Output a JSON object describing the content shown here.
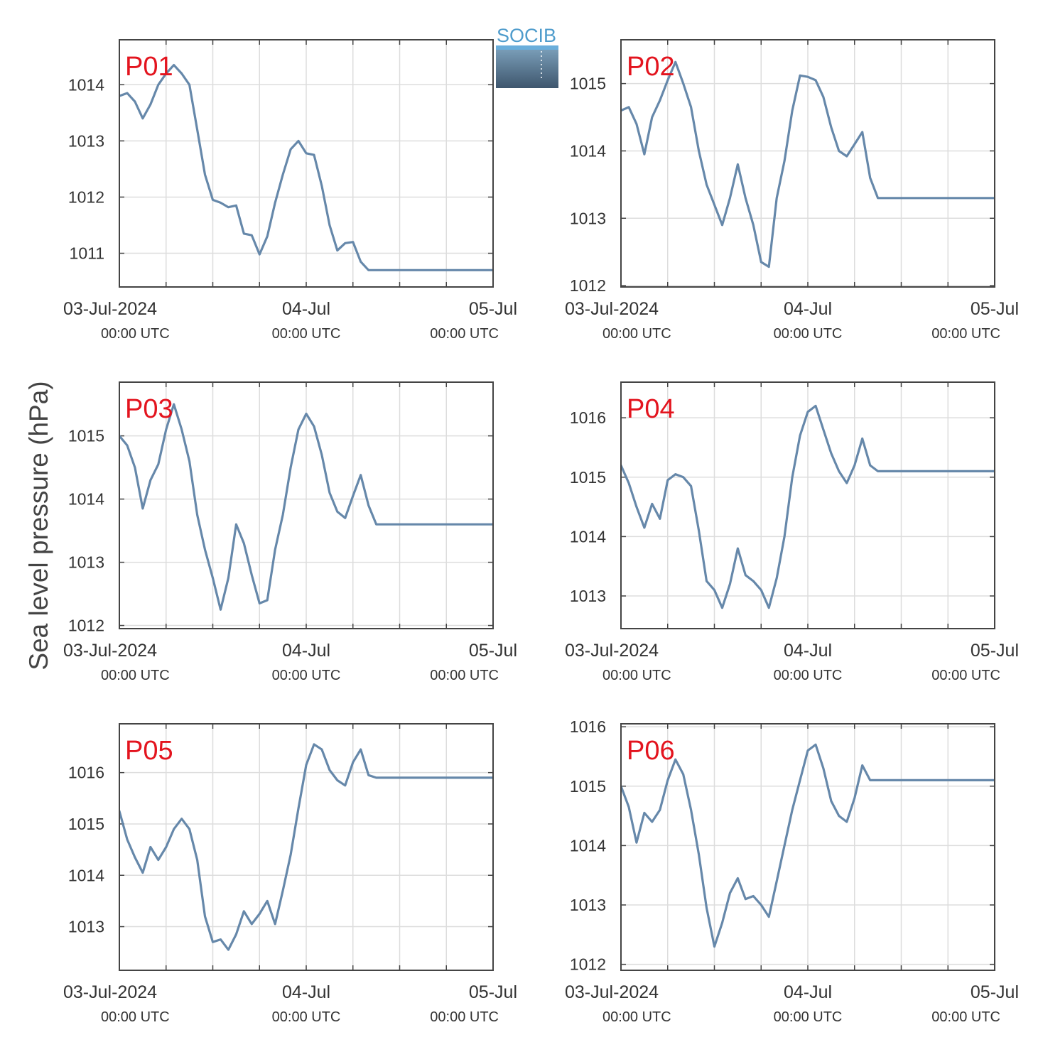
{
  "figure": {
    "ylabel": "Sea level pressure (hPa)",
    "logo_text": "SOCIB",
    "line_color": "#6688aa",
    "station_color": "#e3141e",
    "grid_color": "#dddddd"
  },
  "chart_data": [
    {
      "type": "line",
      "station": "P01",
      "ylim": [
        1010.4,
        1014.8
      ],
      "yticks": [
        1011,
        1012,
        1013,
        1014
      ],
      "xlim": [
        0,
        48
      ],
      "xticks": [
        0,
        6,
        12,
        18,
        24,
        30,
        36,
        42,
        48
      ],
      "xtick_labels": [
        {
          "x": 0,
          "date": "03-Jul-2024",
          "time": "00:00 UTC"
        },
        {
          "x": 24,
          "date": "04-Jul",
          "time": "00:00 UTC"
        },
        {
          "x": 48,
          "date": "05-Jul",
          "time": "00:00 UTC"
        }
      ],
      "x": [
        0,
        1,
        2,
        3,
        4,
        5,
        6,
        7,
        8,
        9,
        10,
        11,
        12,
        13,
        14,
        15,
        16,
        17,
        18,
        19,
        20,
        21,
        22,
        23,
        24,
        25,
        26,
        27,
        28,
        29,
        30,
        31,
        32,
        33,
        34,
        35,
        36,
        37,
        38,
        39,
        40,
        41,
        42,
        43,
        44,
        45,
        46,
        47,
        48
      ],
      "values": [
        1013.8,
        1013.85,
        1013.7,
        1013.4,
        1013.65,
        1014.0,
        1014.2,
        1014.35,
        1014.2,
        1014.0,
        1013.2,
        1012.4,
        1011.95,
        1011.9,
        1011.82,
        1011.85,
        1011.35,
        1011.32,
        1010.98,
        1011.3,
        1011.9,
        1012.4,
        1012.85,
        1013.0,
        1012.78,
        1012.75,
        1012.2,
        1011.5,
        1011.05,
        1011.18,
        1011.2,
        1010.85,
        1010.7,
        1010.7,
        1010.7,
        1010.7,
        1010.7,
        1010.7,
        1010.7,
        1010.7,
        1010.7,
        1010.7,
        1010.7,
        1010.7,
        1010.7,
        1010.7,
        1010.7,
        1010.7,
        1010.7
      ]
    },
    {
      "type": "line",
      "station": "P02",
      "ylim": [
        1011.98,
        1015.65
      ],
      "yticks": [
        1012,
        1013,
        1014,
        1015
      ],
      "xlim": [
        0,
        48
      ],
      "xticks": [
        0,
        6,
        12,
        18,
        24,
        30,
        36,
        42,
        48
      ],
      "xtick_labels": [
        {
          "x": 0,
          "date": "03-Jul-2024",
          "time": "00:00 UTC"
        },
        {
          "x": 24,
          "date": "04-Jul",
          "time": "00:00 UTC"
        },
        {
          "x": 48,
          "date": "05-Jul",
          "time": "00:00 UTC"
        }
      ],
      "x": [
        0,
        1,
        2,
        3,
        4,
        5,
        6,
        7,
        8,
        9,
        10,
        11,
        12,
        13,
        14,
        15,
        16,
        17,
        18,
        19,
        20,
        21,
        22,
        23,
        24,
        25,
        26,
        27,
        28,
        29,
        30,
        31,
        32,
        33,
        34,
        35,
        36,
        37,
        38,
        39,
        40,
        41,
        42,
        43,
        44,
        45,
        46,
        47,
        48
      ],
      "values": [
        1014.6,
        1014.65,
        1014.4,
        1013.95,
        1014.5,
        1014.75,
        1015.05,
        1015.32,
        1015.0,
        1014.65,
        1014.0,
        1013.5,
        1013.2,
        1012.9,
        1013.3,
        1013.8,
        1013.3,
        1012.9,
        1012.35,
        1012.28,
        1013.3,
        1013.85,
        1014.6,
        1015.12,
        1015.1,
        1015.05,
        1014.8,
        1014.35,
        1014.0,
        1013.92,
        1014.1,
        1014.28,
        1013.6,
        1013.3,
        1013.3,
        1013.3,
        1013.3,
        1013.3,
        1013.3,
        1013.3,
        1013.3,
        1013.3,
        1013.3,
        1013.3,
        1013.3,
        1013.3,
        1013.3,
        1013.3,
        1013.3
      ]
    },
    {
      "type": "line",
      "station": "P03",
      "ylim": [
        1011.95,
        1015.85
      ],
      "yticks": [
        1012,
        1013,
        1014,
        1015
      ],
      "xlim": [
        0,
        48
      ],
      "xticks": [
        0,
        6,
        12,
        18,
        24,
        30,
        36,
        42,
        48
      ],
      "xtick_labels": [
        {
          "x": 0,
          "date": "03-Jul-2024",
          "time": "00:00 UTC"
        },
        {
          "x": 24,
          "date": "04-Jul",
          "time": "00:00 UTC"
        },
        {
          "x": 48,
          "date": "05-Jul",
          "time": "00:00 UTC"
        }
      ],
      "x": [
        0,
        1,
        2,
        3,
        4,
        5,
        6,
        7,
        8,
        9,
        10,
        11,
        12,
        13,
        14,
        15,
        16,
        17,
        18,
        19,
        20,
        21,
        22,
        23,
        24,
        25,
        26,
        27,
        28,
        29,
        30,
        31,
        32,
        33,
        34,
        35,
        36,
        37,
        38,
        39,
        40,
        41,
        42,
        43,
        44,
        45,
        46,
        47,
        48
      ],
      "values": [
        1015.0,
        1014.85,
        1014.5,
        1013.85,
        1014.3,
        1014.55,
        1015.1,
        1015.5,
        1015.1,
        1014.6,
        1013.75,
        1013.2,
        1012.75,
        1012.25,
        1012.75,
        1013.6,
        1013.3,
        1012.8,
        1012.35,
        1012.4,
        1013.2,
        1013.75,
        1014.5,
        1015.1,
        1015.35,
        1015.15,
        1014.7,
        1014.1,
        1013.8,
        1013.7,
        1014.05,
        1014.38,
        1013.9,
        1013.6,
        1013.6,
        1013.6,
        1013.6,
        1013.6,
        1013.6,
        1013.6,
        1013.6,
        1013.6,
        1013.6,
        1013.6,
        1013.6,
        1013.6,
        1013.6,
        1013.6,
        1013.6
      ]
    },
    {
      "type": "line",
      "station": "P04",
      "ylim": [
        1012.45,
        1016.6
      ],
      "yticks": [
        1013,
        1014,
        1015,
        1016
      ],
      "xlim": [
        0,
        48
      ],
      "xticks": [
        0,
        6,
        12,
        18,
        24,
        30,
        36,
        42,
        48
      ],
      "xtick_labels": [
        {
          "x": 0,
          "date": "03-Jul-2024",
          "time": "00:00 UTC"
        },
        {
          "x": 24,
          "date": "04-Jul",
          "time": "00:00 UTC"
        },
        {
          "x": 48,
          "date": "05-Jul",
          "time": "00:00 UTC"
        }
      ],
      "x": [
        0,
        1,
        2,
        3,
        4,
        5,
        6,
        7,
        8,
        9,
        10,
        11,
        12,
        13,
        14,
        15,
        16,
        17,
        18,
        19,
        20,
        21,
        22,
        23,
        24,
        25,
        26,
        27,
        28,
        29,
        30,
        31,
        32,
        33,
        34,
        35,
        36,
        37,
        38,
        39,
        40,
        41,
        42,
        43,
        44,
        45,
        46,
        47,
        48
      ],
      "values": [
        1015.2,
        1014.9,
        1014.5,
        1014.15,
        1014.55,
        1014.3,
        1014.95,
        1015.05,
        1015.0,
        1014.85,
        1014.1,
        1013.25,
        1013.1,
        1012.8,
        1013.2,
        1013.8,
        1013.35,
        1013.25,
        1013.1,
        1012.8,
        1013.3,
        1014.0,
        1015.0,
        1015.7,
        1016.1,
        1016.2,
        1015.8,
        1015.4,
        1015.1,
        1014.9,
        1015.2,
        1015.65,
        1015.2,
        1015.1,
        1015.1,
        1015.1,
        1015.1,
        1015.1,
        1015.1,
        1015.1,
        1015.1,
        1015.1,
        1015.1,
        1015.1,
        1015.1,
        1015.1,
        1015.1,
        1015.1,
        1015.1
      ]
    },
    {
      "type": "line",
      "station": "P05",
      "ylim": [
        1012.15,
        1016.95
      ],
      "yticks": [
        1013,
        1014,
        1015,
        1016
      ],
      "xlim": [
        0,
        48
      ],
      "xticks": [
        0,
        6,
        12,
        18,
        24,
        30,
        36,
        42,
        48
      ],
      "xtick_labels": [
        {
          "x": 0,
          "date": "03-Jul-2024",
          "time": "00:00 UTC"
        },
        {
          "x": 24,
          "date": "04-Jul",
          "time": "00:00 UTC"
        },
        {
          "x": 48,
          "date": "05-Jul",
          "time": "00:00 UTC"
        }
      ],
      "x": [
        0,
        1,
        2,
        3,
        4,
        5,
        6,
        7,
        8,
        9,
        10,
        11,
        12,
        13,
        14,
        15,
        16,
        17,
        18,
        19,
        20,
        21,
        22,
        23,
        24,
        25,
        26,
        27,
        28,
        29,
        30,
        31,
        32,
        33,
        34,
        35,
        36,
        37,
        38,
        39,
        40,
        41,
        42,
        43,
        44,
        45,
        46,
        47,
        48
      ],
      "values": [
        1015.25,
        1014.7,
        1014.35,
        1014.05,
        1014.55,
        1014.3,
        1014.55,
        1014.9,
        1015.1,
        1014.9,
        1014.3,
        1013.2,
        1012.7,
        1012.75,
        1012.55,
        1012.85,
        1013.3,
        1013.05,
        1013.25,
        1013.5,
        1013.05,
        1013.7,
        1014.4,
        1015.3,
        1016.15,
        1016.55,
        1016.45,
        1016.05,
        1015.85,
        1015.75,
        1016.2,
        1016.45,
        1015.95,
        1015.9,
        1015.9,
        1015.9,
        1015.9,
        1015.9,
        1015.9,
        1015.9,
        1015.9,
        1015.9,
        1015.9,
        1015.9,
        1015.9,
        1015.9,
        1015.9,
        1015.9,
        1015.9
      ]
    },
    {
      "type": "line",
      "station": "P06",
      "ylim": [
        1011.9,
        1016.05
      ],
      "yticks": [
        1012,
        1013,
        1014,
        1015,
        1016
      ],
      "xlim": [
        0,
        48
      ],
      "xticks": [
        0,
        6,
        12,
        18,
        24,
        30,
        36,
        42,
        48
      ],
      "xtick_labels": [
        {
          "x": 0,
          "date": "03-Jul-2024",
          "time": "00:00 UTC"
        },
        {
          "x": 24,
          "date": "04-Jul",
          "time": "00:00 UTC"
        },
        {
          "x": 48,
          "date": "05-Jul",
          "time": "00:00 UTC"
        }
      ],
      "x": [
        0,
        1,
        2,
        3,
        4,
        5,
        6,
        7,
        8,
        9,
        10,
        11,
        12,
        13,
        14,
        15,
        16,
        17,
        18,
        19,
        20,
        21,
        22,
        23,
        24,
        25,
        26,
        27,
        28,
        29,
        30,
        31,
        32,
        33,
        34,
        35,
        36,
        37,
        38,
        39,
        40,
        41,
        42,
        43,
        44,
        45,
        46,
        47,
        48
      ],
      "values": [
        1015.0,
        1014.65,
        1014.05,
        1014.55,
        1014.4,
        1014.6,
        1015.1,
        1015.45,
        1015.2,
        1014.6,
        1013.85,
        1012.95,
        1012.3,
        1012.7,
        1013.2,
        1013.45,
        1013.1,
        1013.15,
        1013.0,
        1012.8,
        1013.4,
        1014.0,
        1014.6,
        1015.1,
        1015.6,
        1015.7,
        1015.3,
        1014.75,
        1014.5,
        1014.4,
        1014.8,
        1015.35,
        1015.1,
        1015.1,
        1015.1,
        1015.1,
        1015.1,
        1015.1,
        1015.1,
        1015.1,
        1015.1,
        1015.1,
        1015.1,
        1015.1,
        1015.1,
        1015.1,
        1015.1,
        1015.1,
        1015.1
      ]
    }
  ]
}
